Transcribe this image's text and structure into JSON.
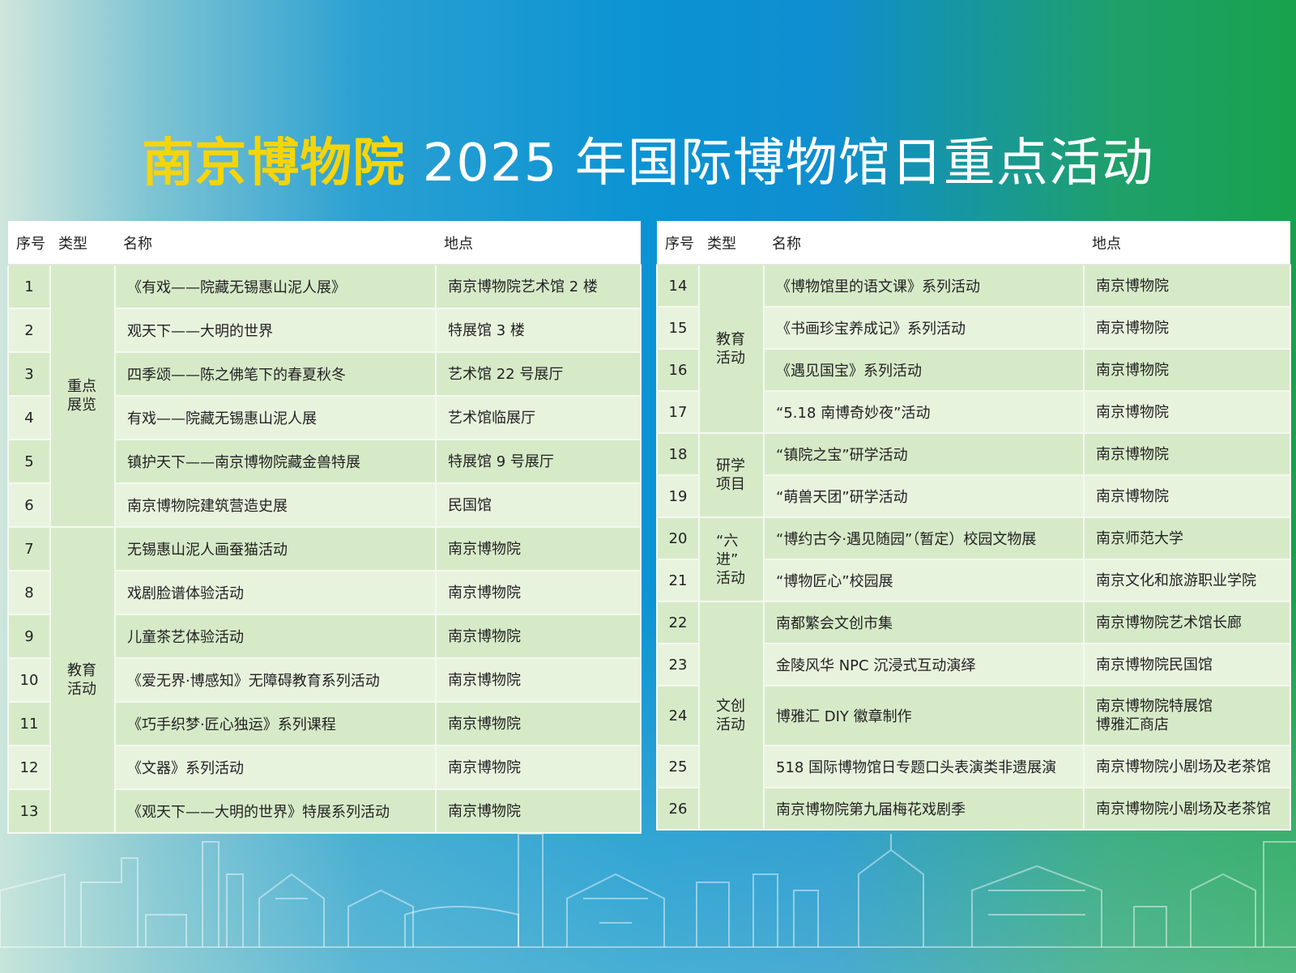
{
  "title": {
    "highlight": "南京博物院",
    "rest": " 2025 年国际博物馆日重点活动"
  },
  "headers": [
    "序号",
    "类型",
    "名称",
    "地点"
  ],
  "left": {
    "groups": [
      {
        "type": "重点\n展览",
        "rows": [
          {
            "no": "1",
            "name": "《有戏——院藏无锡惠山泥人展》",
            "place": "南京博物院艺术馆 2 楼"
          },
          {
            "no": "2",
            "name": "观天下——大明的世界",
            "place": "特展馆 3 楼"
          },
          {
            "no": "3",
            "name": "四季颂——陈之佛笔下的春夏秋冬",
            "place": "艺术馆 22 号展厅"
          },
          {
            "no": "4",
            "name": "有戏——院藏无锡惠山泥人展",
            "place": "艺术馆临展厅"
          },
          {
            "no": "5",
            "name": "镇护天下——南京博物院藏金兽特展",
            "place": "特展馆 9 号展厅"
          },
          {
            "no": "6",
            "name": "南京博物院建筑营造史展",
            "place": "民国馆"
          }
        ]
      },
      {
        "type": "教育\n活动",
        "rows": [
          {
            "no": "7",
            "name": "无锡惠山泥人画蚕猫活动",
            "place": "南京博物院"
          },
          {
            "no": "8",
            "name": "戏剧脸谱体验活动",
            "place": "南京博物院"
          },
          {
            "no": "9",
            "name": "儿童茶艺体验活动",
            "place": "南京博物院"
          },
          {
            "no": "10",
            "name": "《爱无界·博感知》无障碍教育系列活动",
            "place": "南京博物院"
          },
          {
            "no": "11",
            "name": "《巧手织梦·匠心独运》系列课程",
            "place": "南京博物院"
          },
          {
            "no": "12",
            "name": "《文器》系列活动",
            "place": "南京博物院"
          },
          {
            "no": "13",
            "name": "《观天下——大明的世界》特展系列活动",
            "place": "南京博物院"
          }
        ]
      }
    ]
  },
  "right": {
    "groups": [
      {
        "type": "教育\n活动",
        "rows": [
          {
            "no": "14",
            "name": "《博物馆里的语文课》系列活动",
            "place": "南京博物院"
          },
          {
            "no": "15",
            "name": "《书画珍宝养成记》系列活动",
            "place": "南京博物院"
          },
          {
            "no": "16",
            "name": "《遇见国宝》系列活动",
            "place": "南京博物院"
          },
          {
            "no": "17",
            "name": "“5.18 南博奇妙夜”活动",
            "place": "南京博物院"
          }
        ]
      },
      {
        "type": "研学\n项目",
        "rows": [
          {
            "no": "18",
            "name": "“镇院之宝”研学活动",
            "place": "南京博物院"
          },
          {
            "no": "19",
            "name": "“萌兽天团”研学活动",
            "place": "南京博物院"
          }
        ]
      },
      {
        "type": "“六进”\n活动",
        "rows": [
          {
            "no": "20",
            "name": "“博约古今·遇见随园”（暂定）校园文物展",
            "place": "南京师范大学"
          },
          {
            "no": "21",
            "name": "“博物匠心”校园展",
            "place": "南京文化和旅游职业学院"
          }
        ]
      },
      {
        "type": "文创\n活动",
        "rows": [
          {
            "no": "22",
            "name": "南都繁会文创市集",
            "place": "南京博物院艺术馆长廊"
          },
          {
            "no": "23",
            "name": "金陵风华 NPC 沉浸式互动演绎",
            "place": "南京博物院民国馆"
          },
          {
            "no": "24",
            "name": "博雅汇 DIY 徽章制作",
            "place": "南京博物院特展馆\n博雅汇商店"
          },
          {
            "no": "25",
            "name": "518 国际博物馆日专题口头表演类非遗展演",
            "place": "南京博物院小剧场及老茶馆"
          },
          {
            "no": "26",
            "name": "南京博物院第九届梅花戏剧季",
            "place": "南京博物院小剧场及老茶馆"
          }
        ]
      }
    ]
  },
  "colors": {
    "title_highlight": "#f6d40a",
    "row_dark": "#d7eac8",
    "row_light": "#e8f3de"
  }
}
